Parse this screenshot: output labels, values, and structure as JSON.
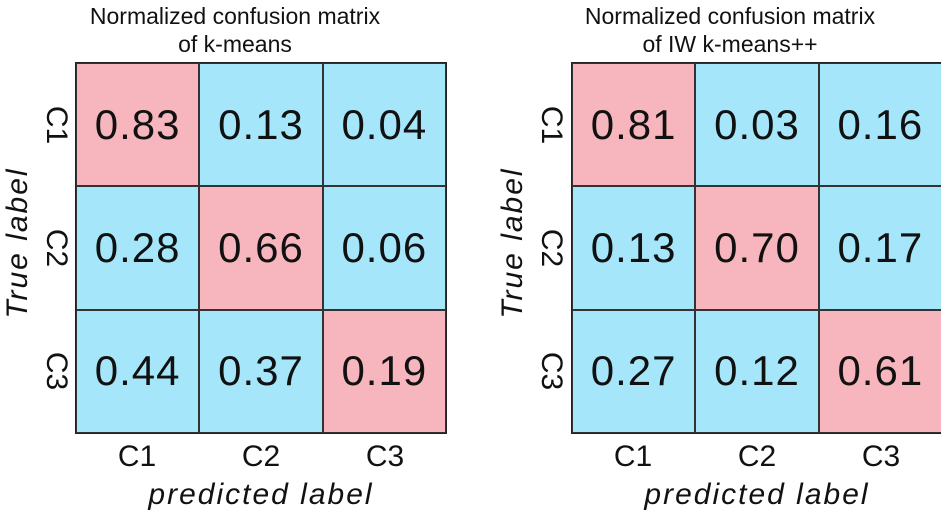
{
  "colors": {
    "diagonal": "#f7b6bd",
    "off_diagonal": "#a6e6fa"
  },
  "chart_data": [
    {
      "type": "heatmap",
      "title_line1": "Normalized confusion matrix",
      "title_line2": "of k-means",
      "xlabel": "predicted label",
      "ylabel": "True label",
      "x_categories": [
        "C1",
        "C2",
        "C3"
      ],
      "y_categories": [
        "C1",
        "C2",
        "C3"
      ],
      "values": [
        [
          "0.83",
          "0.13",
          "0.04"
        ],
        [
          "0.28",
          "0.66",
          "0.06"
        ],
        [
          "0.44",
          "0.37",
          "0.19"
        ]
      ]
    },
    {
      "type": "heatmap",
      "title_line1": "Normalized confusion matrix",
      "title_line2": "of IW k-means++",
      "xlabel": "predicted label",
      "ylabel": "True label",
      "x_categories": [
        "C1",
        "C2",
        "C3"
      ],
      "y_categories": [
        "C1",
        "C2",
        "C3"
      ],
      "values": [
        [
          "0.81",
          "0.03",
          "0.16"
        ],
        [
          "0.13",
          "0.70",
          "0.17"
        ],
        [
          "0.27",
          "0.12",
          "0.61"
        ]
      ]
    }
  ]
}
